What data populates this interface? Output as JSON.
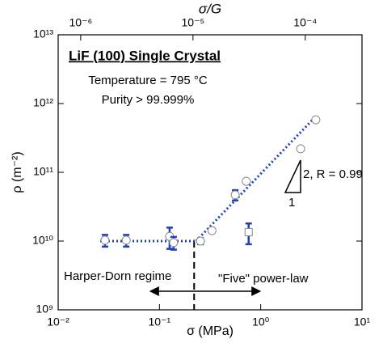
{
  "chart_data": {
    "type": "scatter",
    "x_label": "σ (MPa)",
    "y_label": "ρ (m⁻²)",
    "x2_label": "σ/G",
    "log_x": true,
    "log_y": true,
    "xlim": [
      0.01,
      10
    ],
    "ylim": [
      1000000000.0,
      10000000000000.0
    ],
    "x2lim": [
      6.3e-07,
      0.00032
    ],
    "xticks": [
      {
        "value": 0.01,
        "label": "10⁻²"
      },
      {
        "value": 0.1,
        "label": "10⁻¹"
      },
      {
        "value": 1,
        "label": "10⁰"
      },
      {
        "value": 10,
        "label": "10¹"
      }
    ],
    "yticks": [
      {
        "value": 1000000000.0,
        "label": "10⁹"
      },
      {
        "value": 10000000000.0,
        "label": "10¹⁰"
      },
      {
        "value": 100000000000.0,
        "label": "10¹¹"
      },
      {
        "value": 1000000000000.0,
        "label": "10¹²"
      },
      {
        "value": 10000000000000.0,
        "label": "10¹³"
      }
    ],
    "x2ticks": [
      {
        "value": 1e-06,
        "label": "10⁻⁶"
      },
      {
        "value": 1e-05,
        "label": "10⁻⁵"
      },
      {
        "value": 0.0001,
        "label": "10⁻⁴"
      }
    ],
    "series": [
      {
        "marker": "circle",
        "color": "#888888",
        "x": [
          0.029,
          0.047,
          0.126,
          0.138,
          0.254,
          0.33,
          0.56,
          0.72,
          2.48,
          3.5
        ],
        "values": [
          10300000000.0,
          10300000000.0,
          11700000000.0,
          9500000000.0,
          10000000000.0,
          14200000000.0,
          47000000000.0,
          74000000000.0,
          220000000000.0,
          580000000000.0
        ],
        "errors": [
          2000000000.0,
          2000000000.0,
          4000000000.0,
          2000000000.0,
          1000000000.0,
          null,
          8000000000.0,
          null,
          null,
          null
        ]
      },
      {
        "marker": "square",
        "color": "#888888",
        "x": [
          0.76
        ],
        "values": [
          13500000000.0
        ],
        "errors": [
          4500000000.0
        ]
      }
    ],
    "fits": [
      {
        "color": "#1f3fbf",
        "x": [
          0.026,
          0.23
        ],
        "values": [
          10000000000.0,
          10000000000.0
        ]
      },
      {
        "color": "#1f3fbf",
        "x": [
          0.23,
          3.5
        ],
        "values": [
          10000000000.0,
          650000000000.0
        ]
      }
    ],
    "boundary_x": 0.22,
    "annotations": {
      "heading": "LiF (100) Single Crystal",
      "temperature": "Temperature = 795 °C",
      "purity": "Purity > 99.999%",
      "slope": "2, R = 0.99",
      "run": "1",
      "left_regime": "Harper-Dorn regime",
      "right_regime": "\"Five\" power-law"
    }
  }
}
